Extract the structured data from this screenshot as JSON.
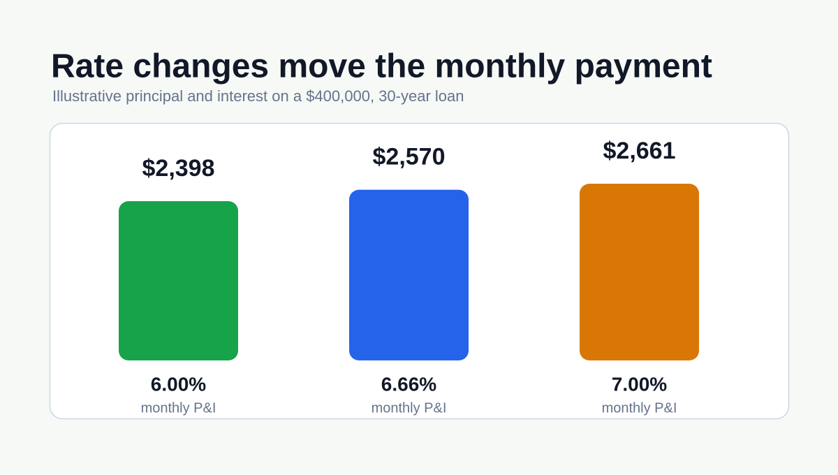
{
  "chart_data": {
    "type": "bar",
    "title": "Rate changes move the monthly payment",
    "subtitle": "Illustrative principal and interest on a $400,000, 30-year loan",
    "categories": [
      "6.00%",
      "6.66%",
      "7.00%"
    ],
    "category_sublabel": "monthly P&I",
    "values": [
      2398,
      2570,
      2661
    ],
    "value_labels": [
      "$2,398",
      "$2,570",
      "$2,661"
    ],
    "colors": [
      "#16a34a",
      "#2563eb",
      "#d97706"
    ]
  }
}
